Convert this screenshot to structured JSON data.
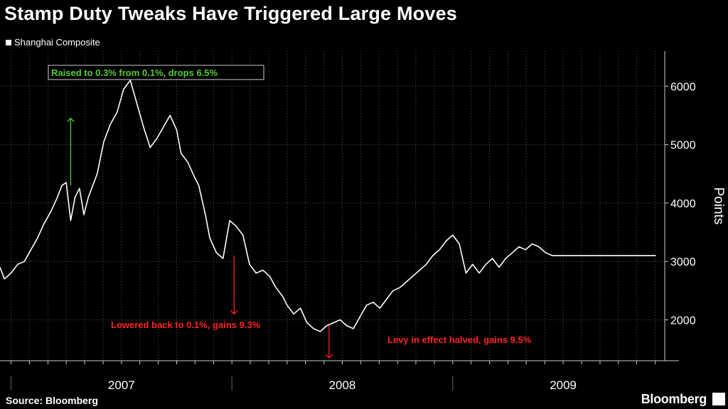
{
  "header": {
    "title": "Stamp Duty Tweaks Have Triggered Large Moves",
    "legend": "Shanghai Composite"
  },
  "footer": {
    "source": "Source: Bloomberg",
    "brand": "Bloomberg"
  },
  "chart_data": {
    "type": "line",
    "title": "Stamp Duty Tweaks Have Triggered Large Moves",
    "ylabel": "Points",
    "ylim": [
      1300,
      6600
    ],
    "yticks": [
      2000,
      3000,
      4000,
      5000,
      6000
    ],
    "ytick_labels": [
      "2000",
      "3000",
      "4000",
      "5000",
      "6000"
    ],
    "xlim": [
      2006.95,
      2009.96
    ],
    "x_year_labels": [
      {
        "label": "2007",
        "at": 2007.5
      },
      {
        "label": "2008",
        "at": 2008.5
      },
      {
        "label": "2009",
        "at": 2009.5
      }
    ],
    "x_ticks": [
      2007.0,
      2007.083,
      2007.167,
      2007.25,
      2007.333,
      2007.417,
      2007.5,
      2007.583,
      2007.667,
      2007.75,
      2007.833,
      2007.917,
      2008.0,
      2008.083,
      2008.167,
      2008.25,
      2008.333,
      2008.417,
      2008.5,
      2008.583,
      2008.667,
      2008.75,
      2008.833,
      2008.917,
      2009.0,
      2009.083,
      2009.167,
      2009.25,
      2009.333,
      2009.417,
      2009.5,
      2009.583,
      2009.667,
      2009.75,
      2009.833,
      2009.917
    ],
    "legend": [
      "Shanghai Composite"
    ],
    "grid": true,
    "series": [
      {
        "name": "Shanghai Composite",
        "color": "#ffffff",
        "x": [
          2006.95,
          2006.97,
          2007.0,
          2007.03,
          2007.06,
          2007.09,
          2007.12,
          2007.15,
          2007.18,
          2007.21,
          2007.23,
          2007.25,
          2007.27,
          2007.29,
          2007.31,
          2007.33,
          2007.35,
          2007.37,
          2007.39,
          2007.42,
          2007.45,
          2007.48,
          2007.51,
          2007.54,
          2007.57,
          2007.6,
          2007.63,
          2007.66,
          2007.69,
          2007.72,
          2007.75,
          2007.77,
          2007.8,
          2007.83,
          2007.85,
          2007.88,
          2007.9,
          2007.93,
          2007.96,
          2007.99,
          2008.02,
          2008.05,
          2008.08,
          2008.11,
          2008.14,
          2008.17,
          2008.2,
          2008.23,
          2008.25,
          2008.28,
          2008.31,
          2008.34,
          2008.37,
          2008.4,
          2008.43,
          2008.46,
          2008.49,
          2008.52,
          2008.55,
          2008.58,
          2008.61,
          2008.64,
          2008.67,
          2008.7,
          2008.73,
          2008.76,
          2008.79,
          2008.82,
          2008.85,
          2008.88,
          2008.91,
          2008.94,
          2008.97,
          2009.0,
          2009.03,
          2009.06,
          2009.09,
          2009.12,
          2009.15,
          2009.18,
          2009.21,
          2009.24,
          2009.27,
          2009.3,
          2009.33,
          2009.36,
          2009.39,
          2009.42,
          2009.45,
          2009.48,
          2009.51,
          2009.54,
          2009.57,
          2009.6,
          2009.63,
          2009.66,
          2009.69,
          2009.72,
          2009.75,
          2009.78,
          2009.81,
          2009.84,
          2009.86,
          2009.88,
          2009.9,
          2009.92
        ],
        "y": [
          2900,
          2700,
          2800,
          2950,
          3000,
          3200,
          3400,
          3650,
          3850,
          4100,
          4300,
          4350,
          3700,
          4100,
          4250,
          3800,
          4100,
          4300,
          4500,
          5050,
          5350,
          5550,
          5950,
          6100,
          5700,
          5300,
          4950,
          5100,
          5300,
          5500,
          5250,
          4850,
          4700,
          4450,
          4300,
          3800,
          3400,
          3150,
          3050,
          3700,
          3600,
          3450,
          2950,
          2800,
          2850,
          2750,
          2550,
          2400,
          2250,
          2100,
          2200,
          1950,
          1850,
          1800,
          1900,
          1950,
          2000,
          1900,
          1850,
          2050,
          2250,
          2300,
          2200,
          2350,
          2500,
          2550,
          2650,
          2750,
          2850,
          2950,
          3100,
          3200,
          3350,
          3450,
          3300,
          2800,
          2950,
          2800,
          2950,
          3050,
          2900,
          3050,
          3150,
          3250,
          3200,
          3300,
          3250,
          3150,
          3100,
          3100,
          3100,
          3100,
          3100,
          3100,
          3100,
          3100,
          3100,
          3100,
          3100,
          3100,
          3100,
          3100,
          3100,
          3100,
          3100,
          3100
        ]
      }
    ],
    "annotations": [
      {
        "text": "Raised to 0.3% from 0.1%, drops 6.5%",
        "x": 2007.27,
        "color": "#55cc33",
        "direction": "up",
        "boxed": true,
        "from": 4300,
        "to": 5450
      },
      {
        "text": "Lowered back to 0.1%, gains 9.3%",
        "x": 2008.01,
        "color": "#ff2222",
        "direction": "down",
        "boxed": false,
        "from": 3100,
        "to": 2100
      },
      {
        "text": "Levy in effect halved, gains 9.5%",
        "x": 2008.44,
        "color": "#ff2222",
        "direction": "down",
        "boxed": false,
        "from": 1900,
        "to": 1350
      }
    ]
  }
}
